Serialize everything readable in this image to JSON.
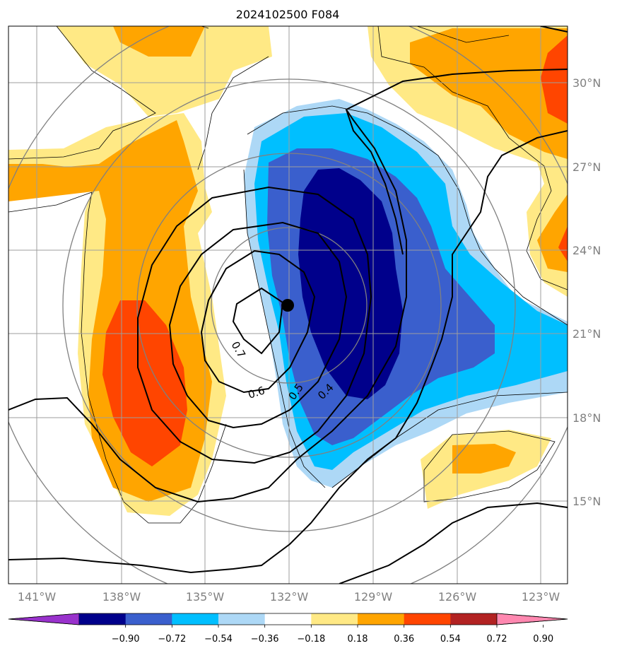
{
  "title": "2024102500 F084",
  "map": {
    "lon_range": [
      -142,
      -122
    ],
    "lat_range": [
      12,
      32
    ],
    "lon_ticks": [
      {
        "value": -141,
        "label": "141°W"
      },
      {
        "value": -138,
        "label": "138°W"
      },
      {
        "value": -135,
        "label": "135°W"
      },
      {
        "value": -132,
        "label": "132°W"
      },
      {
        "value": -129,
        "label": "129°W"
      },
      {
        "value": -126,
        "label": "126°W"
      },
      {
        "value": -123,
        "label": "123°W"
      }
    ],
    "lat_ticks": [
      {
        "value": 30,
        "label": "30°N"
      },
      {
        "value": 27,
        "label": "27°N"
      },
      {
        "value": 24,
        "label": "24°N"
      },
      {
        "value": 21,
        "label": "21°N"
      },
      {
        "value": 18,
        "label": "18°N"
      },
      {
        "value": 15,
        "label": "15°N"
      }
    ],
    "grid": true,
    "storm_center": {
      "lon": -132,
      "lat": 22
    },
    "contour_labels": [
      "0.7",
      "0.6",
      "0.5",
      "0.4"
    ],
    "range_rings": "concentric gray circles around storm center"
  },
  "colorbar": {
    "ticks": [
      "−0.90",
      "−0.72",
      "−0.54",
      "−0.36",
      "−0.18",
      "0.18",
      "0.36",
      "0.54",
      "0.72",
      "0.90"
    ],
    "colors": [
      "#9932cc",
      "#00008b",
      "#3a5fcd",
      "#00bfff",
      "#add8f6",
      "#ffffff",
      "#ffe985",
      "#ffa500",
      "#ff4500",
      "#b22222",
      "#ff88b0"
    ],
    "extend": "both"
  },
  "colors": {
    "neg_weak": "#add8f6",
    "neg_mid": "#00bfff",
    "neg_strong": "#3a5fcd",
    "neg_max": "#00008b",
    "pos_weak": "#ffe985",
    "pos_mid": "#ffa500",
    "pos_strong": "#ff4500"
  }
}
